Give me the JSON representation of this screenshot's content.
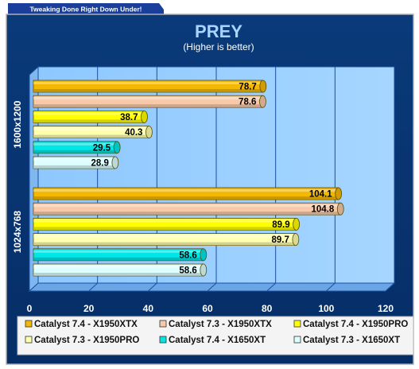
{
  "banner": "Tweaking Done Right Down Under!",
  "chart_data": {
    "type": "bar",
    "orientation": "horizontal",
    "title": "PREY",
    "subtitle": "(Higher is better)",
    "xlabel": "",
    "ylabel": "",
    "xlim": [
      0,
      120
    ],
    "xticks": [
      0,
      20,
      40,
      60,
      80,
      100,
      120
    ],
    "grid": true,
    "legend_position": "bottom",
    "categories": [
      "1600x1200",
      "1024x768"
    ],
    "series": [
      {
        "name": "Catalyst 7.4 - X1950XTX",
        "color": "#f5b800",
        "values": [
          78.7,
          104.1
        ]
      },
      {
        "name": "Catalyst 7.3 - X1950XTX",
        "color": "#f7c9a8",
        "values": [
          78.6,
          104.8
        ]
      },
      {
        "name": "Catalyst 7.4 - X1950PRO",
        "color": "#ffff00",
        "values": [
          38.7,
          89.9
        ]
      },
      {
        "name": "Catalyst 7.3 - X1950PRO",
        "color": "#ffffb0",
        "values": [
          40.3,
          89.7
        ]
      },
      {
        "name": "Catalyst 7.4 - X1650XT",
        "color": "#00e5e5",
        "values": [
          29.5,
          58.6
        ]
      },
      {
        "name": "Catalyst 7.3 - X1650XT",
        "color": "#dcffff",
        "values": [
          28.9,
          58.6
        ]
      }
    ]
  }
}
